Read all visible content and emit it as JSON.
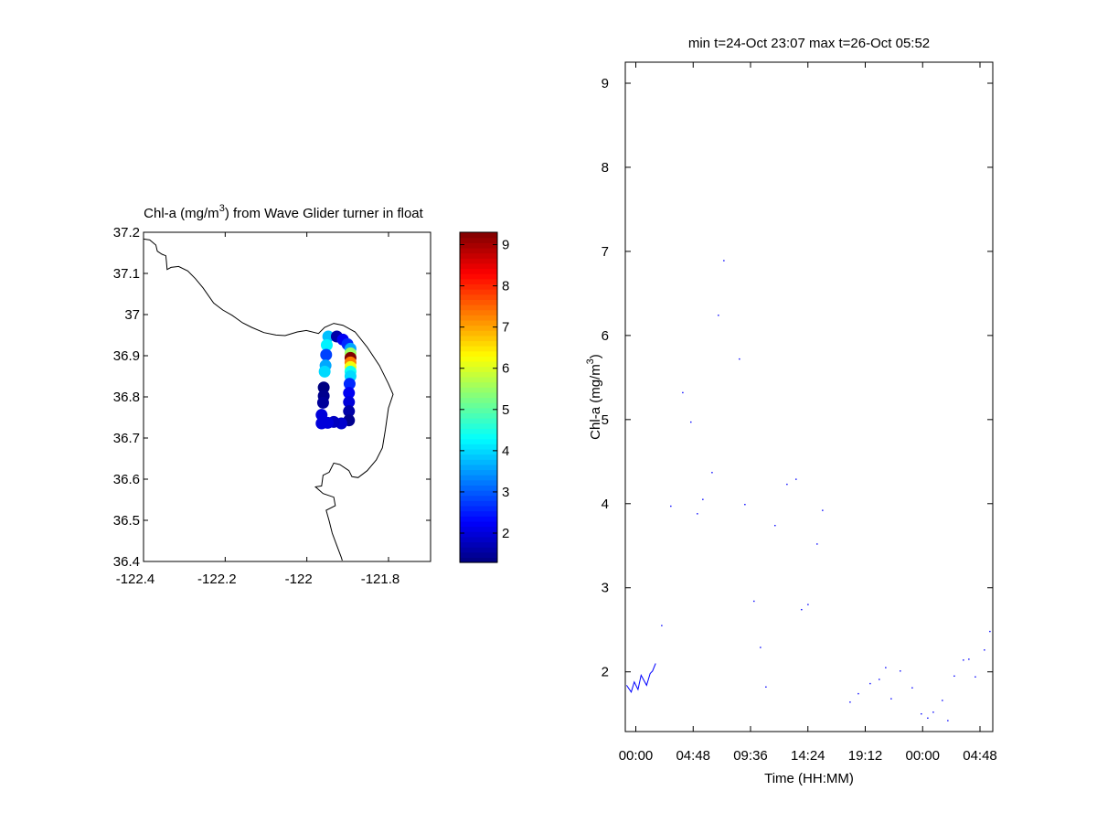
{
  "chart_data": [
    {
      "type": "scatter",
      "title_prefix": "Chl-a (mg/m",
      "title_sup": "3",
      "title_suffix": ") from Wave Glider turner in float",
      "xlim": [
        -122.4,
        -121.697
      ],
      "ylim": [
        36.4,
        37.2
      ],
      "xticks": [
        -122.4,
        -122.2,
        -122,
        -121.8
      ],
      "xtick_labels": [
        "-122.4",
        "-122.2",
        "-122",
        "-121.8"
      ],
      "yticks": [
        36.4,
        36.5,
        36.6,
        36.7,
        36.8,
        36.9,
        37.0,
        37.1,
        37.2
      ],
      "ytick_labels": [
        "36.4",
        "36.5",
        "36.6",
        "36.7",
        "36.8",
        "36.9",
        "37",
        "37.1",
        "37.2"
      ],
      "colorbar": {
        "colormap": "jet",
        "range": [
          1.29,
          9.3
        ],
        "ticks": [
          2,
          3,
          4,
          5,
          6,
          7,
          8,
          9
        ],
        "tick_labels": [
          "2",
          "3",
          "4",
          "5",
          "6",
          "7",
          "8",
          "9"
        ]
      },
      "coastline": [
        [
          -122.3996,
          37.1836
        ],
        [
          -122.3847,
          37.1814
        ],
        [
          -122.3698,
          37.1688
        ],
        [
          -122.3661,
          37.154
        ],
        [
          -122.3549,
          37.1466
        ],
        [
          -122.3453,
          37.1429
        ],
        [
          -122.3438,
          37.1281
        ],
        [
          -122.3423,
          37.1096
        ],
        [
          -122.3326,
          37.1147
        ],
        [
          -122.314,
          37.117
        ],
        [
          -122.2916,
          37.1059
        ],
        [
          -122.273,
          37.0874
        ],
        [
          -122.2544,
          37.0651
        ],
        [
          -122.2283,
          37.0281
        ],
        [
          -122.206,
          37.0111
        ],
        [
          -122.1836,
          36.9985
        ],
        [
          -122.1575,
          36.98
        ],
        [
          -122.1352,
          36.9689
        ],
        [
          -122.1054,
          36.9562
        ],
        [
          -122.0756,
          36.9503
        ],
        [
          -122.0533,
          36.9488
        ],
        [
          -122.0235,
          36.9577
        ],
        [
          -122.0012,
          36.9614
        ],
        [
          -121.9714,
          36.954
        ],
        [
          -121.9565,
          36.9688
        ],
        [
          -121.9341,
          36.9786
        ],
        [
          -121.9118,
          36.9741
        ],
        [
          -121.882,
          36.9577
        ],
        [
          -121.8522,
          36.9207
        ],
        [
          -121.8224,
          36.8762
        ],
        [
          -121.8001,
          36.8318
        ],
        [
          -121.7889,
          36.8059
        ],
        [
          -121.8001,
          36.7725
        ],
        [
          -121.8075,
          36.7207
        ],
        [
          -121.815,
          36.6762
        ],
        [
          -121.8299,
          36.6466
        ],
        [
          -121.8522,
          36.6207
        ],
        [
          -121.8746,
          36.6037
        ],
        [
          -121.8895,
          36.6059
        ],
        [
          -121.8969,
          36.6207
        ],
        [
          -121.9193,
          36.6355
        ],
        [
          -121.9341,
          36.6392
        ],
        [
          -121.9453,
          36.617
        ],
        [
          -121.9602,
          36.6096
        ],
        [
          -121.9639,
          36.5836
        ],
        [
          -121.9788,
          36.5814
        ],
        [
          -121.9602,
          36.5651
        ],
        [
          -121.9341,
          36.5562
        ],
        [
          -121.9304,
          36.5355
        ],
        [
          -121.9527,
          36.5244
        ],
        [
          -121.9453,
          36.4984
        ],
        [
          -121.9378,
          36.4688
        ],
        [
          -121.9266,
          36.4392
        ],
        [
          -121.9155,
          36.4096
        ],
        [
          -121.9133,
          36.4022
        ]
      ],
      "points": [
        [
          -121.9475,
          36.9466,
          3.8
        ],
        [
          -121.9512,
          36.9259,
          4.2
        ],
        [
          -121.9527,
          36.9022,
          2.8
        ],
        [
          -121.9542,
          36.8763,
          3.6
        ],
        [
          -121.9564,
          36.8614,
          4.0
        ],
        [
          -121.9266,
          36.9466,
          1.6
        ],
        [
          -121.9117,
          36.9392,
          2.2
        ],
        [
          -121.9005,
          36.9281,
          2.6
        ],
        [
          -121.8931,
          36.917,
          3.6
        ],
        [
          -121.8931,
          36.9059,
          5.5
        ],
        [
          -121.8931,
          36.8948,
          9.3
        ],
        [
          -121.8931,
          36.8837,
          7.3
        ],
        [
          -121.8931,
          36.8726,
          6.2
        ],
        [
          -121.8931,
          36.8614,
          4.4
        ],
        [
          -121.8931,
          36.8503,
          4.0
        ],
        [
          -121.8953,
          36.8318,
          2.6
        ],
        [
          -121.8968,
          36.8096,
          2.2
        ],
        [
          -121.8968,
          36.7874,
          2.0
        ],
        [
          -121.8968,
          36.7652,
          1.6
        ],
        [
          -121.8968,
          36.7429,
          1.4
        ],
        [
          -121.9155,
          36.7355,
          1.9
        ],
        [
          -121.9341,
          36.7392,
          1.8
        ],
        [
          -121.949,
          36.737,
          2.0
        ],
        [
          -121.9639,
          36.7355,
          2.0
        ],
        [
          -121.9639,
          36.7563,
          2.0
        ],
        [
          -121.9587,
          36.8229,
          1.3
        ],
        [
          -121.9587,
          36.8022,
          1.4
        ],
        [
          -121.9602,
          36.7859,
          1.5
        ]
      ]
    },
    {
      "type": "line",
      "title": "min t=24-Oct 23:07 max t=26-Oct 05:52",
      "xlabel": "Time (HH:MM)",
      "ylabel_prefix": "Chl-a (mg/m",
      "ylabel_sup": "3",
      "ylabel_suffix": ")",
      "x_units": "hours since 24-Oct 00:00",
      "xlim": [
        -0.88,
        29.87
      ],
      "ylim": [
        1.29,
        9.25
      ],
      "xticks": [
        0,
        4.8,
        9.6,
        14.4,
        19.2,
        24,
        28.8
      ],
      "xtick_labels": [
        "00:00",
        "04:48",
        "09:36",
        "14:24",
        "19:12",
        "00:00",
        "04:48"
      ],
      "yticks": [
        2,
        3,
        4,
        5,
        6,
        7,
        8,
        9
      ],
      "ytick_labels": [
        "2",
        "3",
        "4",
        "5",
        "6",
        "7",
        "8",
        "9"
      ],
      "series_color": "#0000ff",
      "line": [
        [
          -0.77,
          1.84
        ],
        [
          -0.38,
          1.76
        ],
        [
          -0.13,
          1.88
        ],
        [
          0.18,
          1.79
        ],
        [
          0.44,
          1.96
        ],
        [
          0.9,
          1.84
        ],
        [
          1.2,
          1.98
        ],
        [
          1.4,
          2.01
        ],
        [
          1.66,
          2.1
        ]
      ],
      "points": [
        [
          7.37,
          6.89
        ],
        [
          6.91,
          6.24
        ],
        [
          8.67,
          5.72
        ],
        [
          3.93,
          5.32
        ],
        [
          4.61,
          4.97
        ],
        [
          6.38,
          4.37
        ],
        [
          12.65,
          4.23
        ],
        [
          13.41,
          4.29
        ],
        [
          2.93,
          3.97
        ],
        [
          5.61,
          4.05
        ],
        [
          5.15,
          3.88
        ],
        [
          9.13,
          3.99
        ],
        [
          15.63,
          3.92
        ],
        [
          11.65,
          3.74
        ],
        [
          15.17,
          3.52
        ],
        [
          9.89,
          2.84
        ],
        [
          14.41,
          2.8
        ],
        [
          13.87,
          2.74
        ],
        [
          2.17,
          2.55
        ],
        [
          10.43,
          2.29
        ],
        [
          10.89,
          1.82
        ],
        [
          29.63,
          2.48
        ],
        [
          29.17,
          2.26
        ],
        [
          27.41,
          2.14
        ],
        [
          27.87,
          2.15
        ],
        [
          20.91,
          2.05
        ],
        [
          22.13,
          2.01
        ],
        [
          26.65,
          1.95
        ],
        [
          28.41,
          1.94
        ],
        [
          20.37,
          1.91
        ],
        [
          19.61,
          1.86
        ],
        [
          23.13,
          1.81
        ],
        [
          18.62,
          1.74
        ],
        [
          17.93,
          1.64
        ],
        [
          21.37,
          1.68
        ],
        [
          25.65,
          1.66
        ],
        [
          23.89,
          1.5
        ],
        [
          24.89,
          1.52
        ],
        [
          24.43,
          1.45
        ],
        [
          26.11,
          1.42
        ]
      ]
    }
  ]
}
